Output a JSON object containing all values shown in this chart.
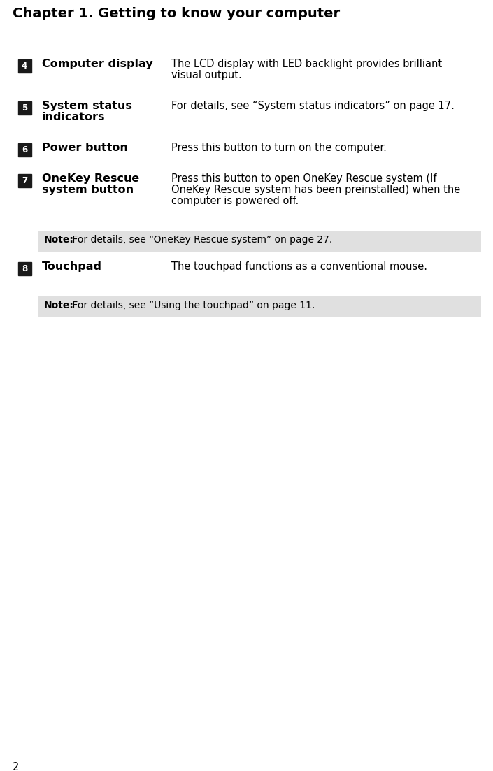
{
  "title": "Chapter 1. Getting to know your computer",
  "page_number": "2",
  "background_color": "#ffffff",
  "title_fontsize": 14,
  "items": [
    {
      "number": "4",
      "label": "Computer display",
      "label2": "",
      "description": "The LCD display with LED backlight provides brilliant\nvisual output."
    },
    {
      "number": "5",
      "label": "System status",
      "label2": "indicators",
      "description": "For details, see “System status indicators” on page 17."
    },
    {
      "number": "6",
      "label": "Power button",
      "label2": "",
      "description": "Press this button to turn on the computer."
    },
    {
      "number": "7",
      "label": "OneKey Rescue",
      "label2": "system button",
      "description": "Press this button to open OneKey Rescue system (If\nOneKey Rescue system has been preinstalled) when the\ncomputer is powered off."
    },
    {
      "number": "8",
      "label": "Touchpad",
      "label2": "",
      "description": "The touchpad functions as a conventional mouse."
    }
  ],
  "note_after_7": "Note: For details, see “OneKey Rescue system” on page 27.",
  "note_after_8": "Note: For details, see “Using the touchpad” on page 11.",
  "badge_color": "#1a1a1a",
  "badge_text_color": "#ffffff",
  "label_fontsize": 11.5,
  "desc_fontsize": 10.5,
  "note_fontsize": 10,
  "note_bg_color": "#e0e0e0"
}
